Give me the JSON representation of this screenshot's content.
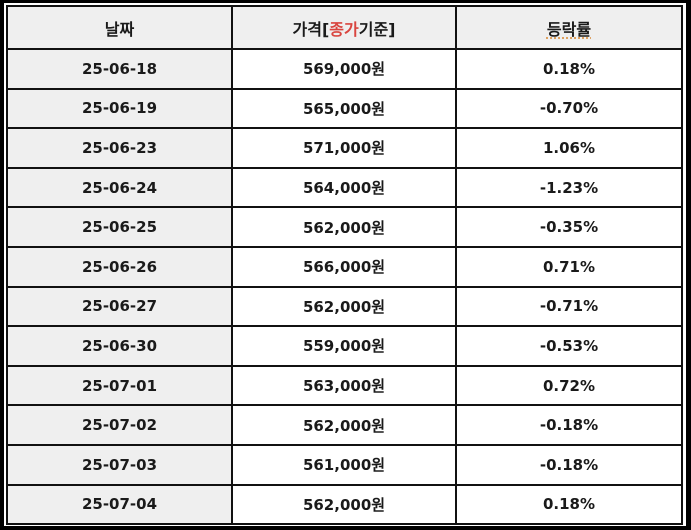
{
  "table": {
    "headers": {
      "date": "날짜",
      "price_prefix": "가격[",
      "price_accent": "종가",
      "price_suffix": "기준]",
      "rate": "등락률"
    },
    "rows": [
      {
        "date": "25-06-18",
        "price": "569,000원",
        "rate": "0.18%"
      },
      {
        "date": "25-06-19",
        "price": "565,000원",
        "rate": "-0.70%"
      },
      {
        "date": "25-06-23",
        "price": "571,000원",
        "rate": "1.06%"
      },
      {
        "date": "25-06-24",
        "price": "564,000원",
        "rate": "-1.23%"
      },
      {
        "date": "25-06-25",
        "price": "562,000원",
        "rate": "-0.35%"
      },
      {
        "date": "25-06-26",
        "price": "566,000원",
        "rate": "0.71%"
      },
      {
        "date": "25-06-27",
        "price": "562,000원",
        "rate": "-0.71%"
      },
      {
        "date": "25-06-30",
        "price": "559,000원",
        "rate": "-0.53%"
      },
      {
        "date": "25-07-01",
        "price": "563,000원",
        "rate": "0.72%"
      },
      {
        "date": "25-07-02",
        "price": "562,000원",
        "rate": "-0.18%"
      },
      {
        "date": "25-07-03",
        "price": "561,000원",
        "rate": "-0.18%"
      },
      {
        "date": "25-07-04",
        "price": "562,000원",
        "rate": "0.18%"
      }
    ]
  },
  "colors": {
    "price_text": "#b0454a",
    "header_accent": "#d9453f",
    "header_bg": "#efefef",
    "date_bg": "#efefef",
    "border": "#111111"
  }
}
